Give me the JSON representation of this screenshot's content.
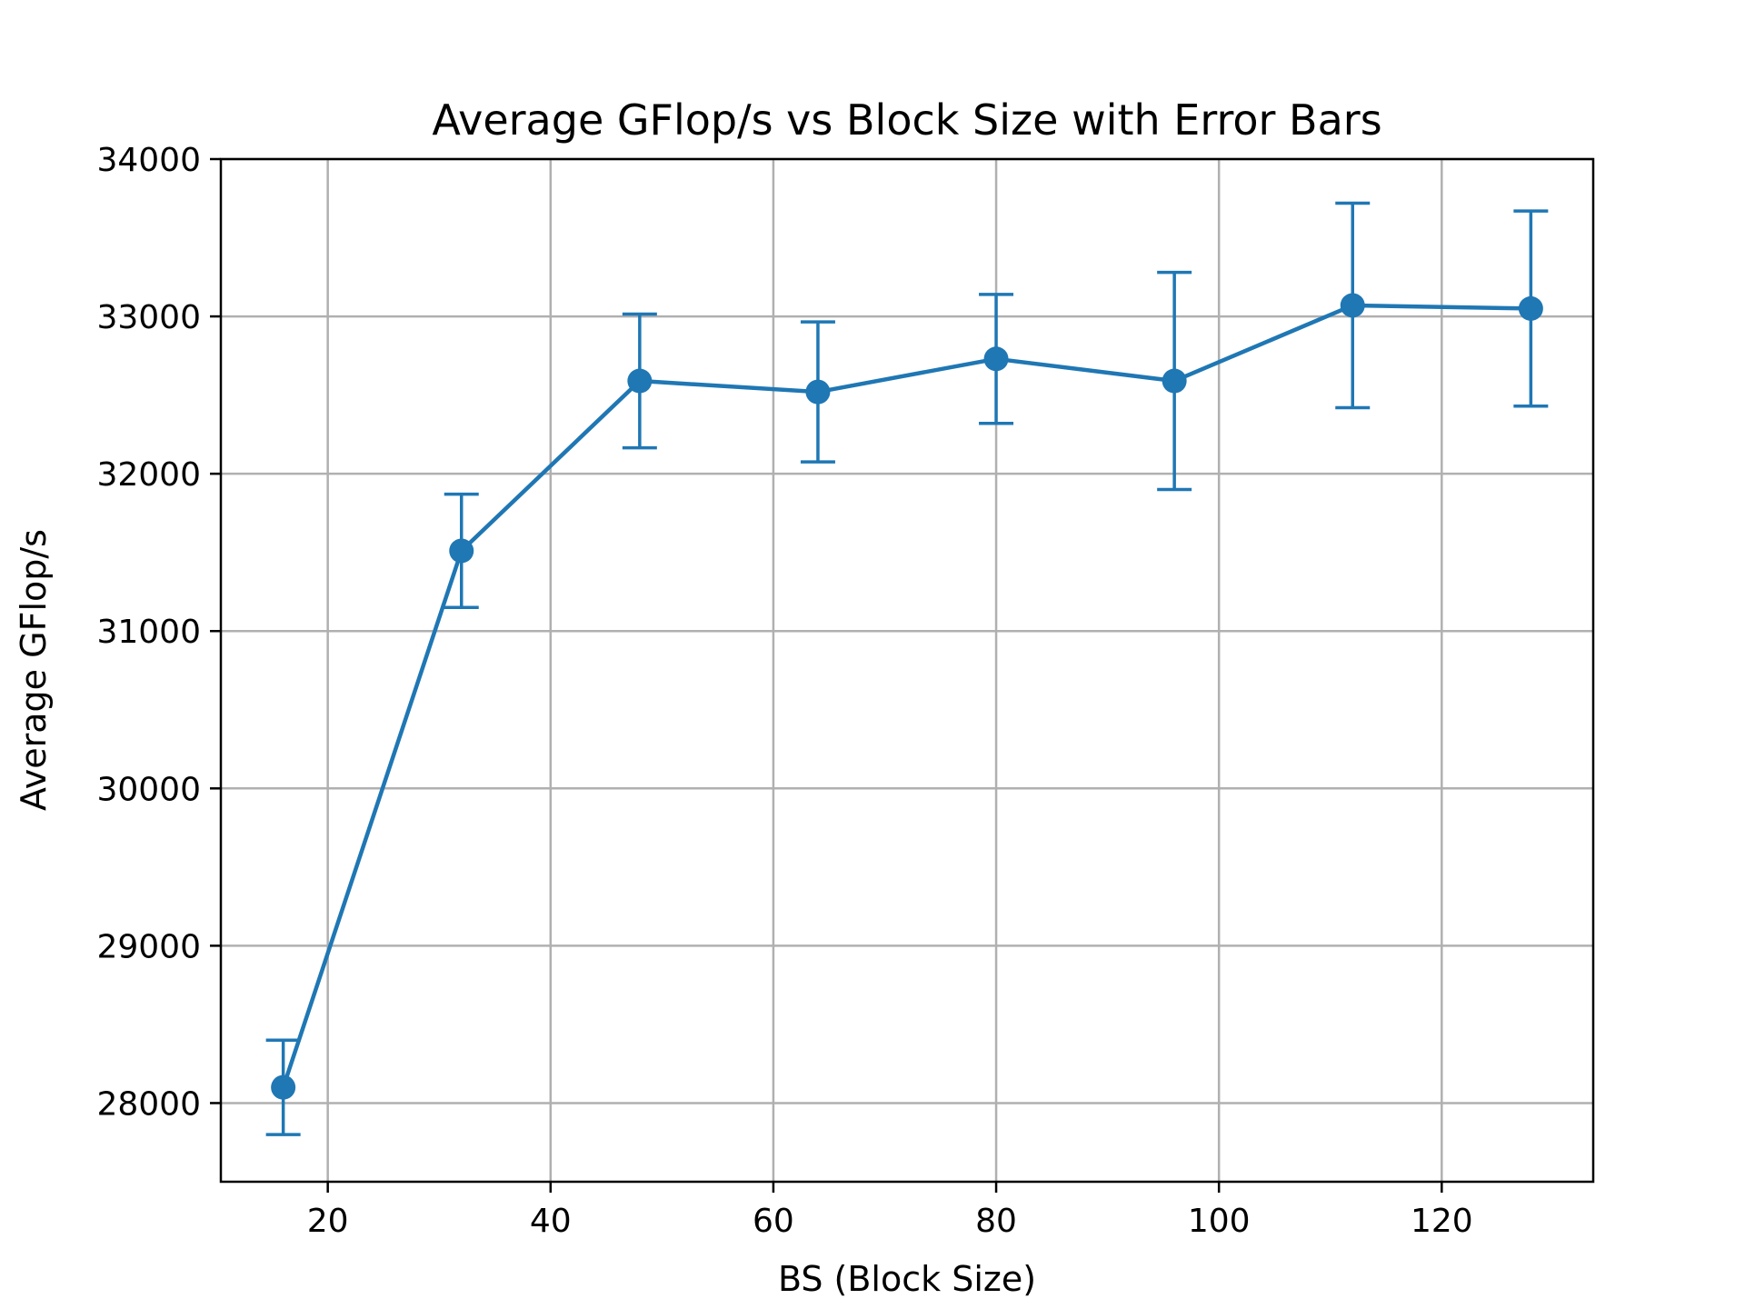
{
  "chart_data": {
    "type": "line",
    "title": "Average GFlop/s vs Block Size with Error Bars",
    "xlabel": "BS (Block Size)",
    "ylabel": "Average GFlop/s",
    "xlim": [
      10.4,
      133.6
    ],
    "ylim": [
      27500,
      34000
    ],
    "xticks": [
      20,
      40,
      60,
      80,
      100,
      120
    ],
    "yticks": [
      28000,
      29000,
      30000,
      31000,
      32000,
      33000,
      34000
    ],
    "grid": true,
    "color": "#1f77b4",
    "series": [
      {
        "x": [
          16,
          32,
          48,
          64,
          80,
          96,
          112,
          128
        ],
        "y": [
          28100,
          31510,
          32590,
          32520,
          32730,
          32590,
          33070,
          33050
        ],
        "err": [
          300,
          360,
          425,
          445,
          410,
          690,
          650,
          620
        ]
      }
    ]
  }
}
